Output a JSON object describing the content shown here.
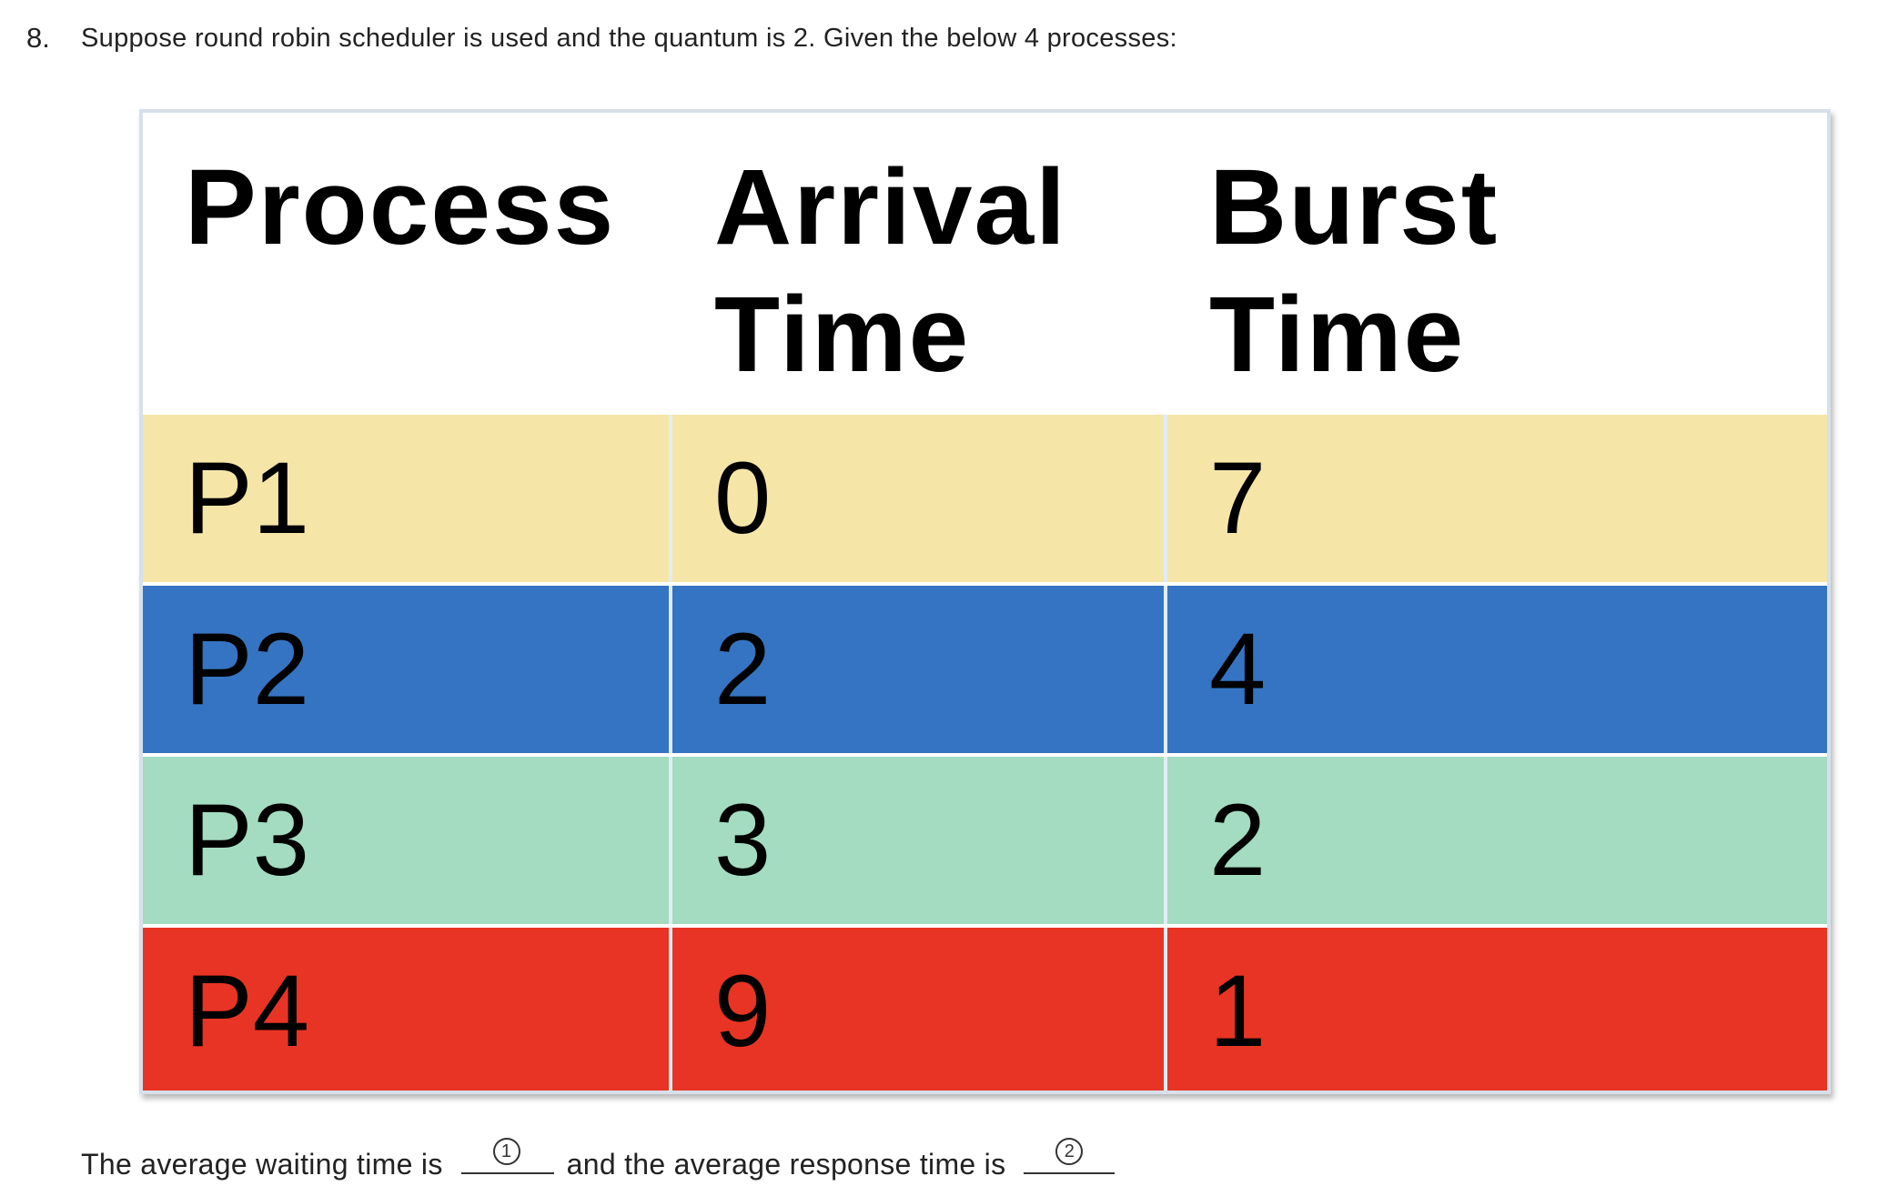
{
  "question": {
    "number": "8.",
    "text": "Suppose round robin scheduler is used and the quantum is 2. Given the below 4 processes:"
  },
  "table": {
    "headers": {
      "process": "Process",
      "arrival_line1": "Arrival",
      "arrival_line2": "Time",
      "burst_line1": "Burst",
      "burst_line2": "Time"
    },
    "rows": [
      {
        "process": "P1",
        "arrival": "0",
        "burst": "7",
        "color": "#f5e6a8"
      },
      {
        "process": "P2",
        "arrival": "2",
        "burst": "4",
        "color": "#3574c2"
      },
      {
        "process": "P3",
        "arrival": "3",
        "burst": "2",
        "color": "#a3dcc1"
      },
      {
        "process": "P4",
        "arrival": "9",
        "burst": "1",
        "color": "#e83424"
      }
    ],
    "cell_separator_color": "#e0ecf5"
  },
  "answer": {
    "prefix": "The average waiting time is",
    "blank1_marker": "1",
    "middle": "and the average response time is",
    "blank2_marker": "2"
  }
}
